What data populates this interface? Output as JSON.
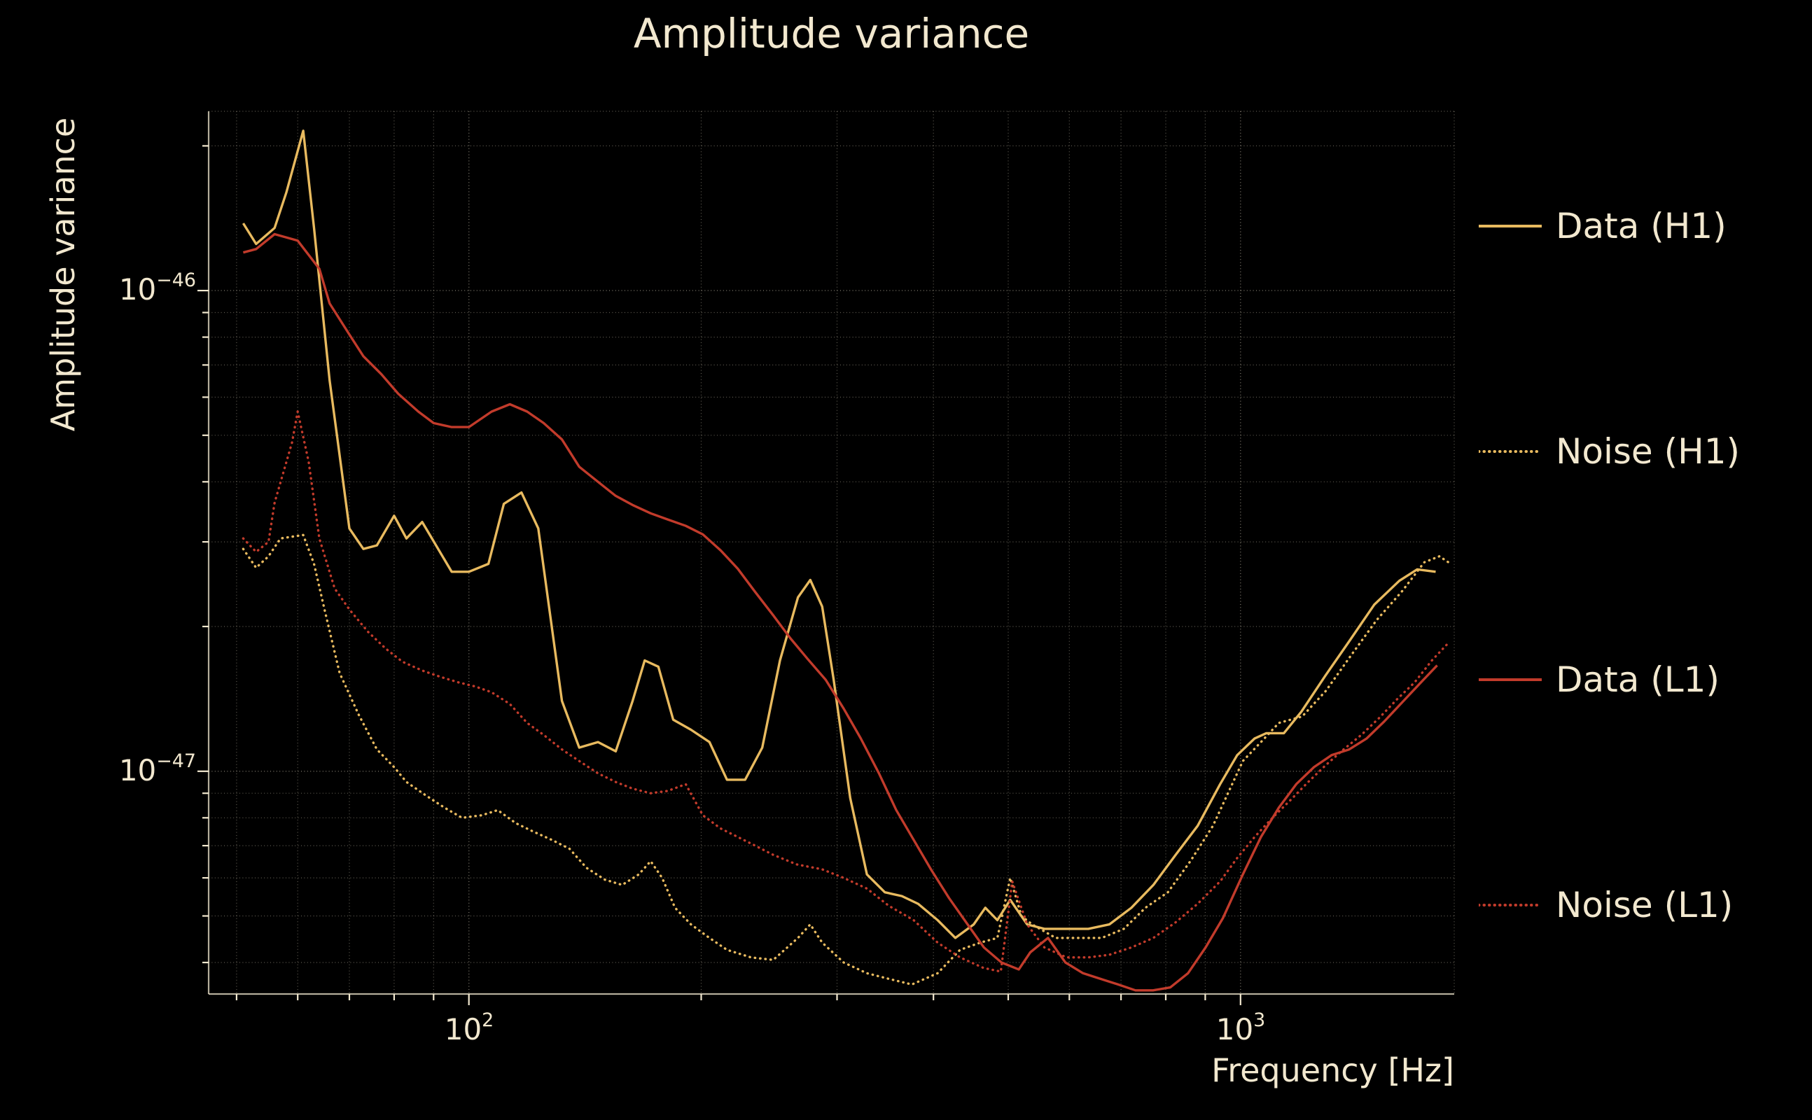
{
  "figure": {
    "title": "Amplitude variance",
    "xlabel": "Frequency [Hz]",
    "ylabel": "Amplitude variance",
    "background_color": "#000000",
    "text_color": "#f2e8cf",
    "grid_color": "#f2e8cf"
  },
  "axes": {
    "x": {
      "scale": "log",
      "ticks": [
        {
          "base": "10",
          "exp": "2",
          "value": 100
        },
        {
          "base": "10",
          "exp": "3",
          "value": 1000
        }
      ]
    },
    "y": {
      "scale": "log",
      "ticks": [
        {
          "base": "10",
          "exp": "−46",
          "value": 1e-46
        },
        {
          "base": "10",
          "exp": "−47",
          "value": 1e-47
        }
      ]
    }
  },
  "chart_data": {
    "type": "line",
    "title": "Amplitude variance",
    "xlabel": "Frequency [Hz]",
    "ylabel": "Amplitude variance",
    "x_scale": "log",
    "y_scale": "log",
    "xlim": [
      46,
      1892
    ],
    "ylim": [
      3.44e-48,
      2.36e-46
    ],
    "grid": "both",
    "legend_position": "right-outside",
    "series": [
      {
        "name": "Data (H1)",
        "color": "#e8ba5f",
        "linestyle": "solid",
        "points": [
          [
            51,
            1.38e-46
          ],
          [
            53,
            1.25e-46
          ],
          [
            56,
            1.35e-46
          ],
          [
            58,
            1.6e-46
          ],
          [
            61,
            2.15e-46
          ],
          [
            63,
            1.35e-46
          ],
          [
            66,
            6.5e-47
          ],
          [
            70,
            3.2e-47
          ],
          [
            73,
            2.9e-47
          ],
          [
            76,
            2.95e-47
          ],
          [
            80,
            3.4e-47
          ],
          [
            83,
            3.05e-47
          ],
          [
            87,
            3.3e-47
          ],
          [
            95,
            2.6e-47
          ],
          [
            100,
            2.6e-47
          ],
          [
            106,
            2.7e-47
          ],
          [
            111,
            3.6e-47
          ],
          [
            117,
            3.8e-47
          ],
          [
            123,
            3.2e-47
          ],
          [
            132,
            1.4e-47
          ],
          [
            139,
            1.12e-47
          ],
          [
            147,
            1.15e-47
          ],
          [
            155,
            1.1e-47
          ],
          [
            163,
            1.4e-47
          ],
          [
            169,
            1.7e-47
          ],
          [
            176,
            1.65e-47
          ],
          [
            184,
            1.28e-47
          ],
          [
            194,
            1.22e-47
          ],
          [
            205,
            1.15e-47
          ],
          [
            216,
            9.6e-48
          ],
          [
            228,
            9.6e-48
          ],
          [
            240,
            1.12e-47
          ],
          [
            253,
            1.7e-47
          ],
          [
            267,
            2.3e-47
          ],
          [
            277,
            2.5e-47
          ],
          [
            287,
            2.2e-47
          ],
          [
            297,
            1.55e-47
          ],
          [
            312,
            8.8e-48
          ],
          [
            328,
            6.1e-48
          ],
          [
            346,
            5.6e-48
          ],
          [
            364,
            5.5e-48
          ],
          [
            382,
            5.3e-48
          ],
          [
            405,
            4.9e-48
          ],
          [
            427,
            4.5e-48
          ],
          [
            451,
            4.8e-48
          ],
          [
            467,
            5.2e-48
          ],
          [
            484,
            4.9e-48
          ],
          [
            503,
            5.4e-48
          ],
          [
            529,
            4.8e-48
          ],
          [
            557,
            4.7e-48
          ],
          [
            595,
            4.7e-48
          ],
          [
            635,
            4.7e-48
          ],
          [
            676,
            4.8e-48
          ],
          [
            722,
            5.2e-48
          ],
          [
            771,
            5.8e-48
          ],
          [
            824,
            6.7e-48
          ],
          [
            880,
            7.7e-48
          ],
          [
            941,
            9.4e-48
          ],
          [
            990,
            1.08e-47
          ],
          [
            1043,
            1.17e-47
          ],
          [
            1080,
            1.2e-47
          ],
          [
            1138,
            1.2e-47
          ],
          [
            1199,
            1.33e-47
          ],
          [
            1288,
            1.58e-47
          ],
          [
            1385,
            1.87e-47
          ],
          [
            1490,
            2.22e-47
          ],
          [
            1606,
            2.49e-47
          ],
          [
            1694,
            2.63e-47
          ],
          [
            1790,
            2.6e-47
          ]
        ]
      },
      {
        "name": "Noise (H1)",
        "color": "#e8ba5f",
        "linestyle": "dotted",
        "points": [
          [
            51,
            2.9e-47
          ],
          [
            53,
            2.65e-47
          ],
          [
            55,
            2.8e-47
          ],
          [
            57,
            3.05e-47
          ],
          [
            61,
            3.1e-47
          ],
          [
            63,
            2.7e-47
          ],
          [
            65,
            2.17e-47
          ],
          [
            68,
            1.6e-47
          ],
          [
            72,
            1.31e-47
          ],
          [
            76,
            1.11e-47
          ],
          [
            80,
            1.02e-47
          ],
          [
            83,
            9.5e-48
          ],
          [
            88,
            8.9e-48
          ],
          [
            93,
            8.4e-48
          ],
          [
            98,
            8e-48
          ],
          [
            104,
            8.1e-48
          ],
          [
            109,
            8.3e-48
          ],
          [
            115,
            7.8e-48
          ],
          [
            121,
            7.5e-48
          ],
          [
            128,
            7.2e-48
          ],
          [
            135,
            6.9e-48
          ],
          [
            142,
            6.3e-48
          ],
          [
            150,
            5.95e-48
          ],
          [
            158,
            5.8e-48
          ],
          [
            166,
            6.1e-48
          ],
          [
            172,
            6.5e-48
          ],
          [
            178,
            6e-48
          ],
          [
            185,
            5.2e-48
          ],
          [
            194,
            4.8e-48
          ],
          [
            205,
            4.5e-48
          ],
          [
            216,
            4.25e-48
          ],
          [
            232,
            4.1e-48
          ],
          [
            248,
            4.05e-48
          ],
          [
            267,
            4.5e-48
          ],
          [
            277,
            4.8e-48
          ],
          [
            287,
            4.4e-48
          ],
          [
            306,
            4e-48
          ],
          [
            328,
            3.8e-48
          ],
          [
            350,
            3.7e-48
          ],
          [
            375,
            3.6e-48
          ],
          [
            405,
            3.8e-48
          ],
          [
            433,
            4.25e-48
          ],
          [
            460,
            4.4e-48
          ],
          [
            484,
            4.5e-48
          ],
          [
            503,
            6e-48
          ],
          [
            520,
            5e-48
          ],
          [
            537,
            4.8e-48
          ],
          [
            576,
            4.5e-48
          ],
          [
            617,
            4.5e-48
          ],
          [
            661,
            4.5e-48
          ],
          [
            706,
            4.7e-48
          ],
          [
            753,
            5.2e-48
          ],
          [
            805,
            5.6e-48
          ],
          [
            861,
            6.5e-48
          ],
          [
            921,
            7.7e-48
          ],
          [
            1007,
            1.05e-47
          ],
          [
            1063,
            1.15e-47
          ],
          [
            1121,
            1.26e-47
          ],
          [
            1202,
            1.3e-47
          ],
          [
            1290,
            1.47e-47
          ],
          [
            1390,
            1.74e-47
          ],
          [
            1500,
            2.06e-47
          ],
          [
            1620,
            2.37e-47
          ],
          [
            1730,
            2.72e-47
          ],
          [
            1810,
            2.8e-47
          ],
          [
            1860,
            2.72e-47
          ]
        ]
      },
      {
        "name": "Data (L1)",
        "color": "#c23b2b",
        "linestyle": "solid",
        "points": [
          [
            51,
            1.2e-46
          ],
          [
            53,
            1.22e-46
          ],
          [
            56,
            1.31e-46
          ],
          [
            60,
            1.27e-46
          ],
          [
            64,
            1.11e-46
          ],
          [
            66,
            9.4e-47
          ],
          [
            70,
            8.1e-47
          ],
          [
            73,
            7.3e-47
          ],
          [
            77,
            6.7e-47
          ],
          [
            81,
            6.1e-47
          ],
          [
            86,
            5.6e-47
          ],
          [
            90,
            5.3e-47
          ],
          [
            95,
            5.2e-47
          ],
          [
            100,
            5.2e-47
          ],
          [
            107,
            5.6e-47
          ],
          [
            113,
            5.8e-47
          ],
          [
            119,
            5.6e-47
          ],
          [
            125,
            5.3e-47
          ],
          [
            132,
            4.9e-47
          ],
          [
            139,
            4.3e-47
          ],
          [
            147,
            4e-47
          ],
          [
            155,
            3.74e-47
          ],
          [
            163,
            3.58e-47
          ],
          [
            172,
            3.44e-47
          ],
          [
            181,
            3.34e-47
          ],
          [
            191,
            3.24e-47
          ],
          [
            201,
            3.11e-47
          ],
          [
            212,
            2.88e-47
          ],
          [
            223,
            2.64e-47
          ],
          [
            235,
            2.36e-47
          ],
          [
            248,
            2.11e-47
          ],
          [
            261,
            1.89e-47
          ],
          [
            275,
            1.71e-47
          ],
          [
            290,
            1.55e-47
          ],
          [
            306,
            1.35e-47
          ],
          [
            322,
            1.17e-47
          ],
          [
            340,
            9.9e-48
          ],
          [
            358,
            8.3e-48
          ],
          [
            377,
            7.2e-48
          ],
          [
            397,
            6.25e-48
          ],
          [
            419,
            5.45e-48
          ],
          [
            441,
            4.85e-48
          ],
          [
            465,
            4.3e-48
          ],
          [
            490,
            4e-48
          ],
          [
            516,
            3.87e-48
          ],
          [
            534,
            4.2e-48
          ],
          [
            563,
            4.5e-48
          ],
          [
            593,
            4e-48
          ],
          [
            625,
            3.8e-48
          ],
          [
            658,
            3.7e-48
          ],
          [
            694,
            3.6e-48
          ],
          [
            731,
            3.5e-48
          ],
          [
            770,
            3.5e-48
          ],
          [
            811,
            3.55e-48
          ],
          [
            855,
            3.8e-48
          ],
          [
            901,
            4.3e-48
          ],
          [
            949,
            4.95e-48
          ],
          [
            1007,
            6.1e-48
          ],
          [
            1063,
            7.3e-48
          ],
          [
            1121,
            8.4e-48
          ],
          [
            1181,
            9.4e-48
          ],
          [
            1245,
            1.02e-47
          ],
          [
            1312,
            1.08e-47
          ],
          [
            1383,
            1.11e-47
          ],
          [
            1457,
            1.17e-47
          ],
          [
            1536,
            1.27e-47
          ],
          [
            1619,
            1.39e-47
          ],
          [
            1706,
            1.52e-47
          ],
          [
            1798,
            1.66e-47
          ]
        ]
      },
      {
        "name": "Noise (L1)",
        "color": "#c23b2b",
        "linestyle": "dotted",
        "points": [
          [
            51,
            3.05e-47
          ],
          [
            53,
            2.86e-47
          ],
          [
            55,
            3e-47
          ],
          [
            56,
            3.62e-47
          ],
          [
            59,
            4.83e-47
          ],
          [
            60,
            5.6e-47
          ],
          [
            62,
            4.4e-47
          ],
          [
            64,
            3.05e-47
          ],
          [
            67,
            2.4e-47
          ],
          [
            70,
            2.17e-47
          ],
          [
            74,
            1.95e-47
          ],
          [
            78,
            1.8e-47
          ],
          [
            82,
            1.69e-47
          ],
          [
            87,
            1.62e-47
          ],
          [
            92,
            1.57e-47
          ],
          [
            97,
            1.53e-47
          ],
          [
            102,
            1.5e-47
          ],
          [
            107,
            1.46e-47
          ],
          [
            113,
            1.38e-47
          ],
          [
            119,
            1.26e-47
          ],
          [
            125,
            1.19e-47
          ],
          [
            132,
            1.11e-47
          ],
          [
            139,
            1.05e-47
          ],
          [
            147,
            9.9e-48
          ],
          [
            155,
            9.5e-48
          ],
          [
            163,
            9.2e-48
          ],
          [
            172,
            9e-48
          ],
          [
            181,
            9.1e-48
          ],
          [
            191,
            9.4e-48
          ],
          [
            201,
            8.1e-48
          ],
          [
            212,
            7.6e-48
          ],
          [
            223,
            7.3e-48
          ],
          [
            235,
            7e-48
          ],
          [
            248,
            6.7e-48
          ],
          [
            266,
            6.4e-48
          ],
          [
            287,
            6.25e-48
          ],
          [
            306,
            6e-48
          ],
          [
            328,
            5.7e-48
          ],
          [
            350,
            5.25e-48
          ],
          [
            377,
            4.9e-48
          ],
          [
            405,
            4.4e-48
          ],
          [
            433,
            4.1e-48
          ],
          [
            464,
            3.9e-48
          ],
          [
            489,
            3.83e-48
          ],
          [
            506,
            5.9e-48
          ],
          [
            529,
            4.8e-48
          ],
          [
            557,
            4.3e-48
          ],
          [
            595,
            4.1e-48
          ],
          [
            635,
            4.1e-48
          ],
          [
            676,
            4.15e-48
          ],
          [
            722,
            4.3e-48
          ],
          [
            771,
            4.5e-48
          ],
          [
            824,
            4.85e-48
          ],
          [
            880,
            5.3e-48
          ],
          [
            941,
            5.9e-48
          ],
          [
            990,
            6.6e-48
          ],
          [
            1043,
            7.3e-48
          ],
          [
            1100,
            8e-48
          ],
          [
            1160,
            8.7e-48
          ],
          [
            1224,
            9.5e-48
          ],
          [
            1290,
            1.03e-47
          ],
          [
            1360,
            1.11e-47
          ],
          [
            1434,
            1.19e-47
          ],
          [
            1512,
            1.29e-47
          ],
          [
            1594,
            1.41e-47
          ],
          [
            1681,
            1.53e-47
          ],
          [
            1770,
            1.7e-47
          ],
          [
            1860,
            1.85e-47
          ]
        ]
      }
    ]
  }
}
